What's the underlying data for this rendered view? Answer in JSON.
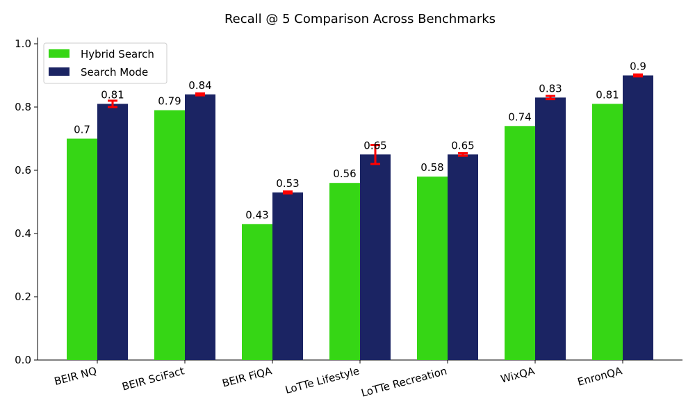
{
  "chart_data": {
    "type": "bar",
    "title": "Recall @ 5 Comparison Across Benchmarks",
    "xlabel": "",
    "ylabel": "",
    "ylim": [
      0,
      1.0
    ],
    "yticks": [
      "0.0",
      "0.2",
      "0.4",
      "0.6",
      "0.8",
      "1.0"
    ],
    "categories": [
      "BEIR NQ",
      "BEIR SciFact",
      "BEIR FiQA",
      "LoTTe Lifestyle",
      "LoTTe Recreation",
      "WixQA",
      "EnronQA"
    ],
    "series": [
      {
        "name": "Hybrid Search",
        "color": "#36d615",
        "values": [
          0.7,
          0.79,
          0.43,
          0.56,
          0.58,
          0.74,
          0.81
        ],
        "labels": [
          "0.7",
          "0.79",
          "0.43",
          "0.56",
          "0.58",
          "0.74",
          "0.81"
        ]
      },
      {
        "name": "Search Mode",
        "color": "#1b2463",
        "values": [
          0.81,
          0.84,
          0.53,
          0.65,
          0.65,
          0.83,
          0.9
        ],
        "labels": [
          "0.81",
          "0.84",
          "0.53",
          "0.65",
          "0.65",
          "0.83",
          "0.9"
        ],
        "error": [
          0.01,
          0.003,
          0.003,
          0.03,
          0.004,
          0.005,
          0.003
        ],
        "error_color": "#ff0000"
      }
    ],
    "legend": "top-left",
    "grid": false
  }
}
